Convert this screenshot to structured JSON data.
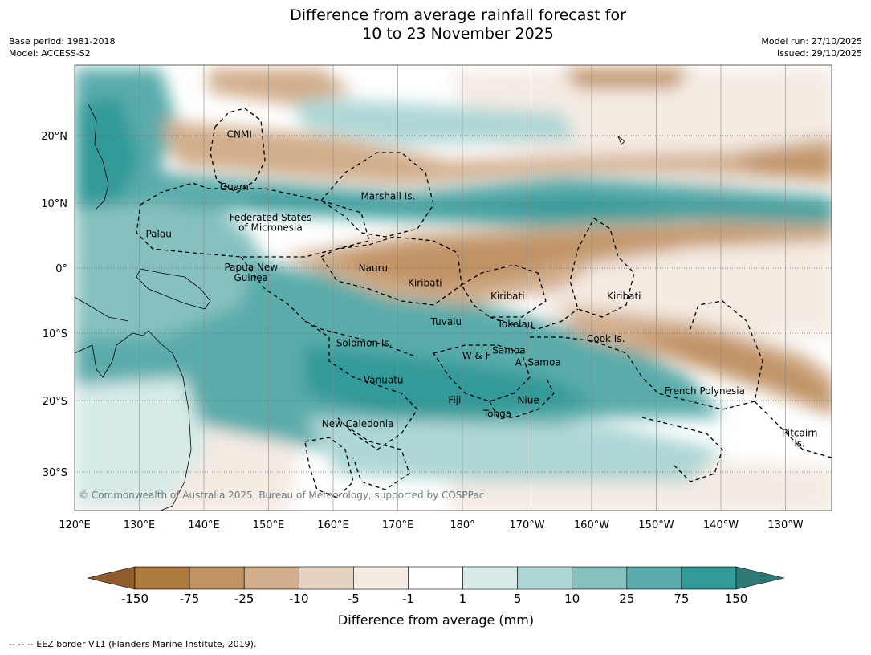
{
  "title_line1": "Difference from average rainfall forecast for",
  "title_line2": "10 to 23 November 2025",
  "base_period": "Base period: 1981-2018",
  "model": "Model: ACCESS-S2",
  "model_run": "Model run: 27/10/2025",
  "issued": "Issued: 29/10/2025",
  "map": {
    "lon_ticks": [
      "120°E",
      "130°E",
      "140°E",
      "150°E",
      "160°E",
      "170°E",
      "180°",
      "170°W",
      "160°W",
      "150°W",
      "140°W",
      "130°W"
    ],
    "lat_ticks": [
      "20°N",
      "10°N",
      "0°",
      "10°S",
      "20°S",
      "30°S"
    ],
    "places": [
      {
        "name": "CNMI",
        "lon": 145.5,
        "lat": 20.4
      },
      {
        "name": "Guam",
        "lon": 144.7,
        "lat": 12.4
      },
      {
        "name": "Marshall Is.",
        "lon": 168.5,
        "lat": 11.0
      },
      {
        "name": "Federated States",
        "lon": 150.3,
        "lat": 7.7
      },
      {
        "name": "of Micronesia",
        "lon": 150.3,
        "lat": 6.2
      },
      {
        "name": "Palau",
        "lon": 133.0,
        "lat": 5.2
      },
      {
        "name": "Papua New",
        "lon": 147.3,
        "lat": 0.1
      },
      {
        "name": "Guinea",
        "lon": 147.3,
        "lat": -1.5
      },
      {
        "name": "Nauru",
        "lon": 166.2,
        "lat": 0.0
      },
      {
        "name": "Kiribati",
        "lon": 174.2,
        "lat": -2.3
      },
      {
        "name": "Kiribati",
        "lon": -173.0,
        "lat": -4.3
      },
      {
        "name": "Kiribati",
        "lon": -155.0,
        "lat": -4.3
      },
      {
        "name": "Tuvalu",
        "lon": 177.5,
        "lat": -8.2
      },
      {
        "name": "Tokelau",
        "lon": -171.8,
        "lat": -8.6
      },
      {
        "name": "Cook Is.",
        "lon": -157.8,
        "lat": -10.8
      },
      {
        "name": "Solomon Is.",
        "lon": 164.8,
        "lat": -11.5
      },
      {
        "name": "Samoa",
        "lon": -172.8,
        "lat": -12.6
      },
      {
        "name": "W & F",
        "lon": -177.8,
        "lat": -13.4
      },
      {
        "name": "A. Samoa",
        "lon": -168.3,
        "lat": -14.4
      },
      {
        "name": "Vanuatu",
        "lon": 167.8,
        "lat": -17.1
      },
      {
        "name": "French Polynesia",
        "lon": -142.5,
        "lat": -18.8
      },
      {
        "name": "Fiji",
        "lon": 178.8,
        "lat": -20.2
      },
      {
        "name": "Niue",
        "lon": -169.8,
        "lat": -20.2
      },
      {
        "name": "Tonga",
        "lon": -174.6,
        "lat": -22.3
      },
      {
        "name": "New Caledonia",
        "lon": 163.8,
        "lat": -23.8
      },
      {
        "name": "Pitcairn",
        "lon": -127.8,
        "lat": -25.2
      },
      {
        "name": "Is.",
        "lon": -127.8,
        "lat": -26.8
      }
    ],
    "copyright": "© Commonwealth of Australia 2025, Bureau of Meteorology, supported by COSPPac"
  },
  "colorbar": {
    "labels": [
      "-150",
      "-75",
      "-25",
      "-10",
      "-5",
      "-1",
      "1",
      "5",
      "10",
      "25",
      "75",
      "150"
    ],
    "colors": [
      "#ad7a3d",
      "#c09365",
      "#d1ae8c",
      "#e5d2c1",
      "#f4ebe3",
      "#ffffff",
      "#d6ebe8",
      "#aed7d5",
      "#86c1bf",
      "#5aacab",
      "#339a98"
    ],
    "under_color": "#8e5d2a",
    "over_color": "#2f7a77",
    "title": "Difference from average (mm)"
  },
  "footer": "--  --  -- EEZ border V11 (Flanders Marine Institute, 2019)."
}
